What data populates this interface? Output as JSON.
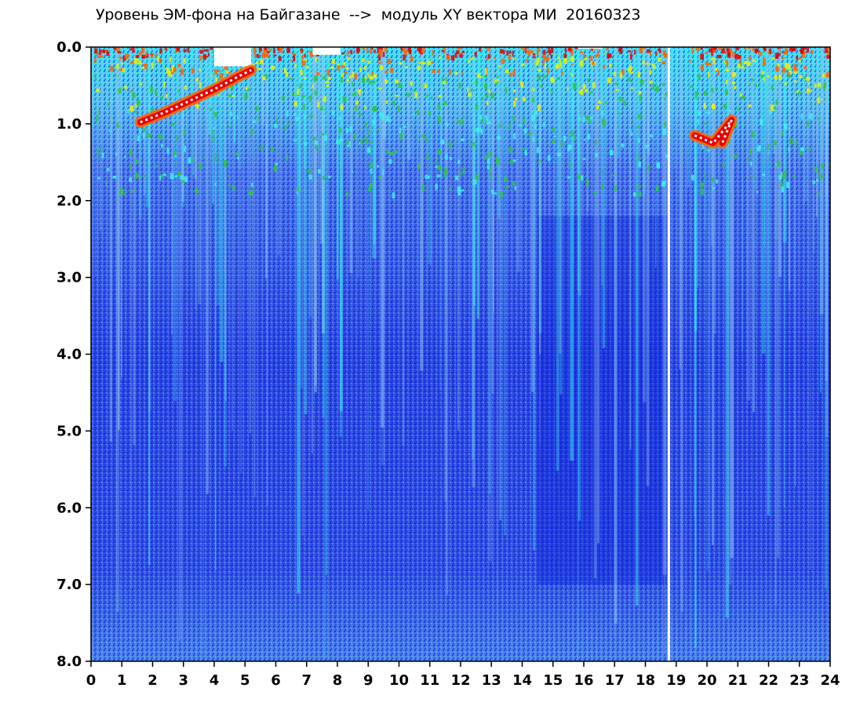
{
  "chart_data": {
    "type": "heatmap",
    "title": "Уровень ЭМ-фона на Байгазане  -->  модуль XY вектора МИ  20160323",
    "xlabel": "",
    "ylabel": "",
    "x_ticks": [
      "0",
      "1",
      "2",
      "3",
      "4",
      "5",
      "6",
      "7",
      "8",
      "9",
      "10",
      "11",
      "12",
      "13",
      "14",
      "15",
      "16",
      "17",
      "18",
      "19",
      "20",
      "21",
      "22",
      "23",
      "24"
    ],
    "y_ticks": [
      "0.0",
      "1.0",
      "2.0",
      "3.0",
      "4.0",
      "5.0",
      "6.0",
      "7.0",
      "8.0"
    ],
    "xlim": [
      0,
      24
    ],
    "ylim": [
      0,
      8
    ],
    "y_inverted": true,
    "colormap": [
      "#0a14d8",
      "#2d50e6",
      "#6e96f0",
      "#8cc8f0",
      "#3ef0f0",
      "#2ec44a",
      "#f0f000",
      "#ff6400",
      "#e60000",
      "#ffffff"
    ],
    "dense_band": {
      "y_max_top": 0.4,
      "x_ranges": [
        [
          0,
          3.2
        ],
        [
          4.5,
          11.5
        ],
        [
          11.8,
          18.7
        ],
        [
          19.4,
          24
        ]
      ]
    },
    "data_gaps_x": [
      18.75
    ],
    "curve_features": [
      {
        "label": "",
        "points": [
          [
            1.6,
            0.98
          ],
          [
            2.4,
            0.85
          ],
          [
            3.2,
            0.7
          ],
          [
            4.0,
            0.55
          ],
          [
            4.8,
            0.38
          ],
          [
            5.2,
            0.3
          ]
        ]
      },
      {
        "label": "",
        "points": [
          [
            19.6,
            1.15
          ],
          [
            20.2,
            1.25
          ],
          [
            20.6,
            1.05
          ],
          [
            20.8,
            0.95
          ],
          [
            20.5,
            1.25
          ]
        ]
      }
    ]
  }
}
